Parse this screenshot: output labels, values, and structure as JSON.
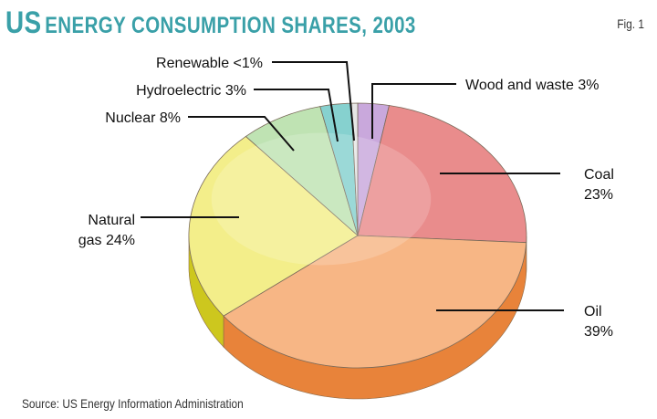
{
  "header": {
    "title_initial": "US",
    "title_rest": "ENERGY CONSUMPTION SHARES, 2003",
    "fig_label": "Fig. 1"
  },
  "footer": {
    "source": "Source: US Energy Information Administration"
  },
  "chart_data": {
    "type": "pie",
    "title": "US ENERGY CONSUMPTION SHARES, 2003",
    "unit": "%",
    "start_angle_deg": 90,
    "direction": "clockwise",
    "style": "3d",
    "slices": [
      {
        "key": "wood",
        "name": "Wood and waste",
        "value": 3,
        "label_lines": [
          "Wood and waste 3%"
        ],
        "color": "#c9a8dc",
        "side": "#9d7bb3"
      },
      {
        "key": "coal",
        "name": "Coal",
        "value": 23,
        "label_lines": [
          "Coal",
          "23%"
        ],
        "color": "#e98c8c",
        "side": "#c45e5e"
      },
      {
        "key": "oil",
        "name": "Oil",
        "value": 39,
        "label_lines": [
          "Oil",
          "39%"
        ],
        "color": "#f7b685",
        "side": "#e8833a"
      },
      {
        "key": "gas",
        "name": "Natural gas",
        "value": 24,
        "label_lines": [
          "Natural",
          "gas 24%"
        ],
        "color": "#f3ee8a",
        "side": "#cdc71e"
      },
      {
        "key": "nuclear",
        "name": "Nuclear",
        "value": 8,
        "label_lines": [
          "Nuclear 8%"
        ],
        "color": "#bfe3b3",
        "side": "#8fbf82"
      },
      {
        "key": "hydro",
        "name": "Hydroelectric",
        "value": 3,
        "label_lines": [
          "Hydroelectric 3%"
        ],
        "color": "#86d1cf",
        "side": "#55a9a6"
      },
      {
        "key": "renewable",
        "name": "Renewable",
        "value": 0.6,
        "label_lines": [
          "Renewable <1%"
        ],
        "color": "#e6e6e6",
        "side": "#b5b5b5"
      }
    ]
  }
}
